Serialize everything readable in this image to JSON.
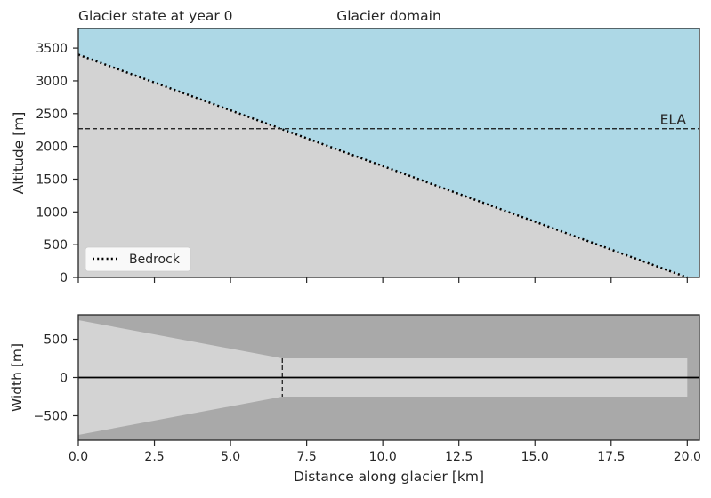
{
  "chart_data": [
    {
      "type": "area",
      "title_left": "Glacier state at year 0",
      "title_center": "Glacier domain",
      "xlabel": "",
      "ylabel": "Altitude [m]",
      "xlim": [
        0,
        20.4
      ],
      "ylim": [
        0,
        3800
      ],
      "yticks": [
        0,
        500,
        1000,
        1500,
        2000,
        2500,
        3000,
        3500
      ],
      "sky_color": "#add8e6",
      "bedrock_fill_color": "#d3d3d3",
      "bedrock": {
        "name": "Bedrock",
        "x": [
          0,
          20
        ],
        "y": [
          3400,
          0
        ]
      },
      "ela": {
        "label": "ELA",
        "y": 2270
      },
      "legend": {
        "placement": "lower-left",
        "entries": [
          "Bedrock"
        ]
      }
    },
    {
      "type": "area",
      "xlabel": "Distance along glacier [km]",
      "ylabel": "Width [m]",
      "xlim": [
        0,
        20.4
      ],
      "ylim": [
        -820,
        820
      ],
      "xticks": [
        0,
        2.5,
        5,
        7.5,
        10,
        12.5,
        15,
        17.5,
        20
      ],
      "xtick_labels": [
        "0.0",
        "2.5",
        "5.0",
        "7.5",
        "10.0",
        "12.5",
        "15.0",
        "17.5",
        "20.0"
      ],
      "yticks": [
        -500,
        0,
        500
      ],
      "ytick_labels": [
        "−500",
        "0",
        "500"
      ],
      "background_color": "#a9a9a9",
      "domain_color": "#d3d3d3",
      "width_profile": {
        "x": [
          0,
          6.7,
          20
        ],
        "half_width": [
          750,
          250,
          250
        ]
      },
      "ela_x": 6.7
    }
  ]
}
